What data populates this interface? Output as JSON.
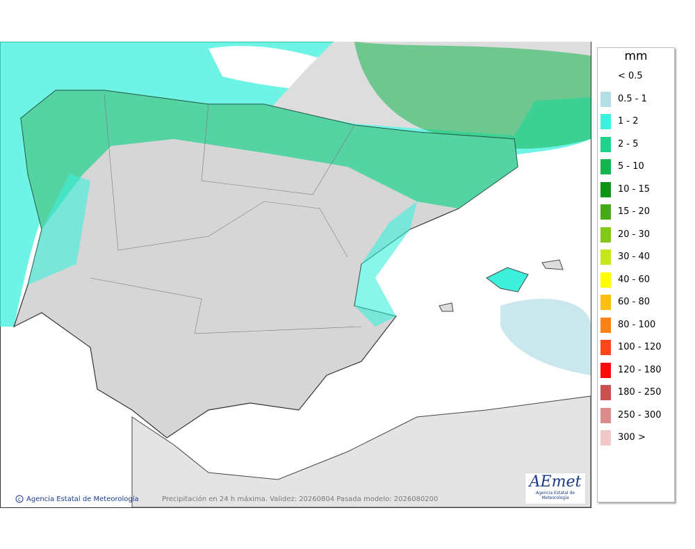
{
  "legend": {
    "title": "mm",
    "items": [
      {
        "label": "< 0.5",
        "color": null
      },
      {
        "label": "0.5 - 1",
        "color": "#b4dde6"
      },
      {
        "label": "1 - 2",
        "color": "#3cf0dc"
      },
      {
        "label": "2 - 5",
        "color": "#1ed28c"
      },
      {
        "label": "5 - 10",
        "color": "#14b450"
      },
      {
        "label": "10 - 15",
        "color": "#0a9614"
      },
      {
        "label": "15 - 20",
        "color": "#46aa14"
      },
      {
        "label": "20 - 30",
        "color": "#82c814"
      },
      {
        "label": "30 - 40",
        "color": "#c8e61e"
      },
      {
        "label": "40 - 60",
        "color": "#ffff00"
      },
      {
        "label": "60 - 80",
        "color": "#ffbe14"
      },
      {
        "label": "80 - 100",
        "color": "#ff8214"
      },
      {
        "label": "100 - 120",
        "color": "#ff4614"
      },
      {
        "label": "120 - 180",
        "color": "#ff0a0a"
      },
      {
        "label": "180 - 250",
        "color": "#c85050"
      },
      {
        "label": "250 - 300",
        "color": "#dc8c8c"
      },
      {
        "label": "300 >",
        "color": "#f0c8c8"
      }
    ]
  },
  "footer": {
    "credit": "Agencia Estatal de Meteorología",
    "caption": "Precipitación en 24 h máxima. Validez: 20260804 Pasada modelo: 2026080200"
  },
  "logo": {
    "name": "AEmet",
    "subtitle": "Agencia Estatal de Meteorología"
  }
}
